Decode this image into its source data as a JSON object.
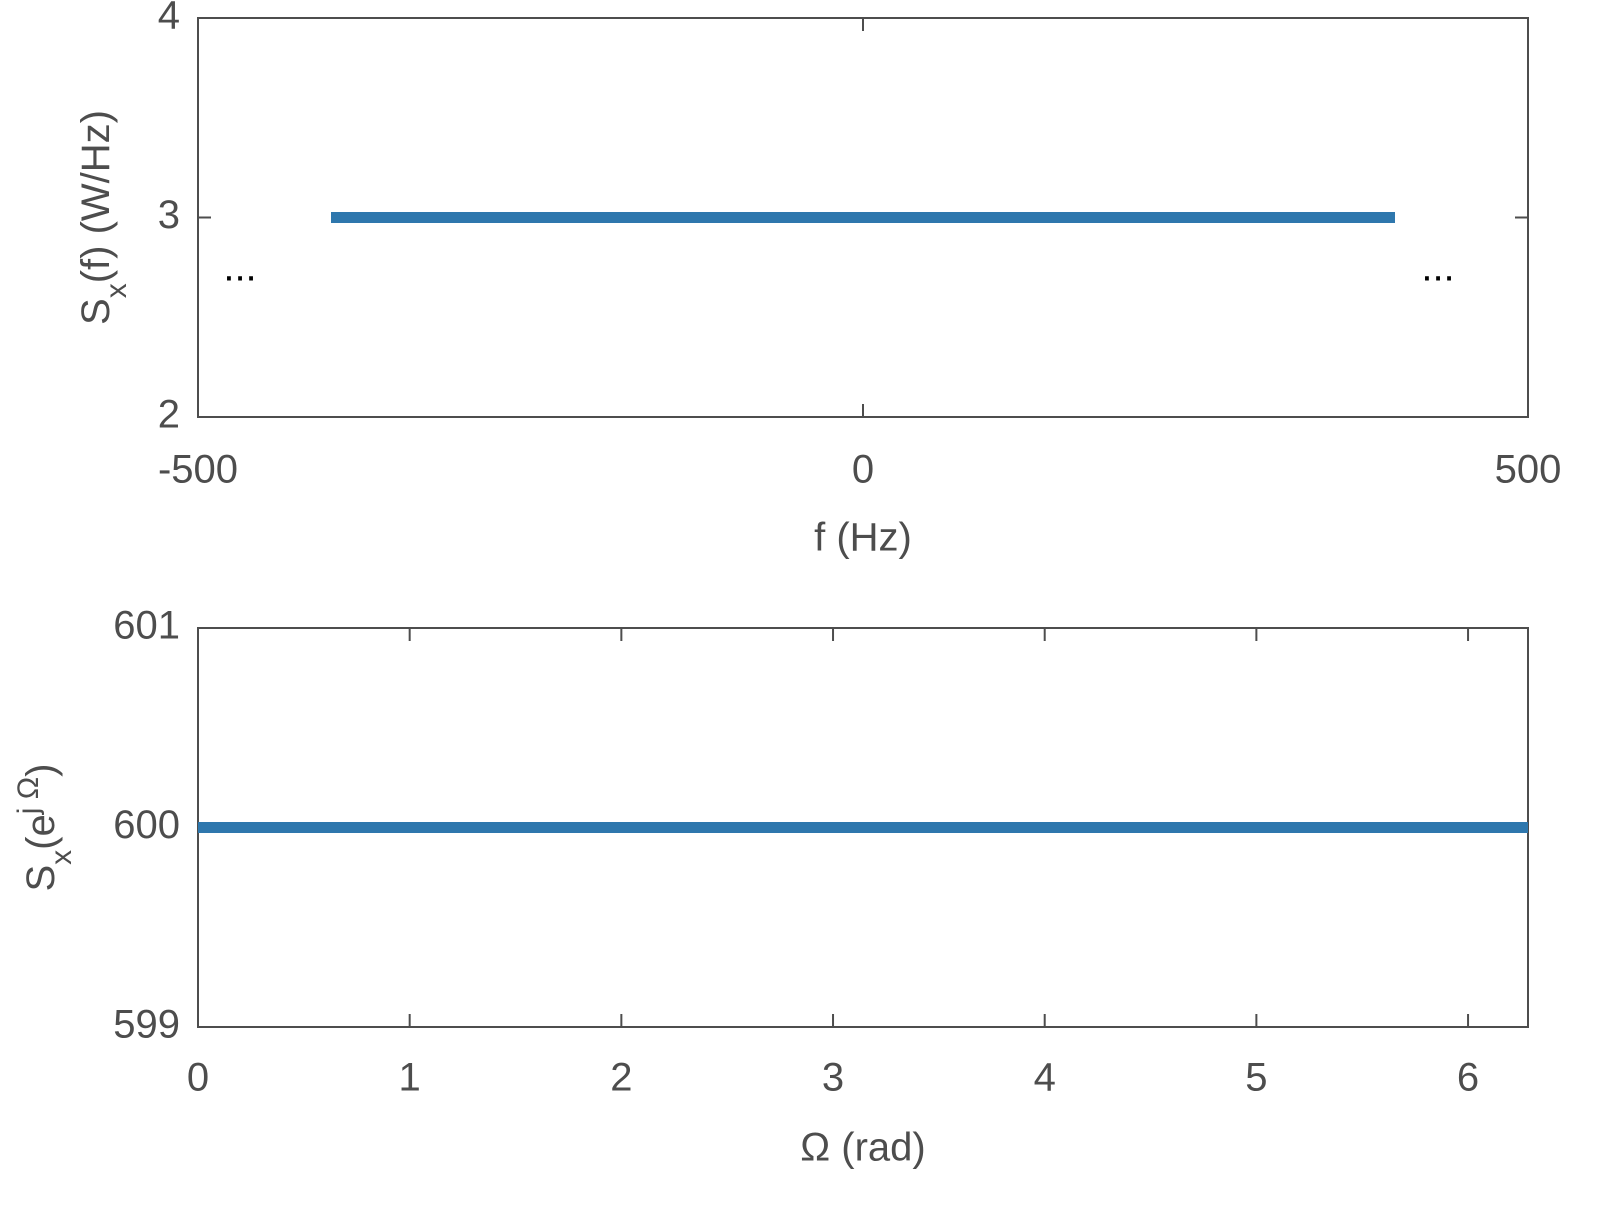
{
  "chart_data": [
    {
      "type": "line",
      "ylabel": [
        "S",
        "x",
        "(f)  (W/Hz)"
      ],
      "xlabel": "f (Hz)",
      "x": [
        -400,
        400
      ],
      "series": [
        {
          "color": "#2e77ad",
          "values": [
            3,
            3
          ]
        }
      ],
      "xlim": [
        -500,
        500
      ],
      "xticks": [
        -500,
        0,
        500
      ],
      "ylim": [
        2,
        4
      ],
      "yticks": [
        2,
        3,
        4
      ],
      "annotations": [
        "...",
        "..."
      ]
    },
    {
      "type": "line",
      "ylabel": [
        "S",
        "x",
        "(e",
        "j Ω",
        ")"
      ],
      "xlabel": "Ω (rad)",
      "x": [
        0,
        6.2832
      ],
      "series": [
        {
          "color": "#2e77ad",
          "values": [
            600,
            600
          ]
        }
      ],
      "xlim": [
        0,
        6.2832
      ],
      "xticks": [
        0,
        1,
        2,
        3,
        4,
        5,
        6
      ],
      "ylim": [
        599,
        601
      ],
      "yticks": [
        599,
        600,
        601
      ]
    }
  ]
}
